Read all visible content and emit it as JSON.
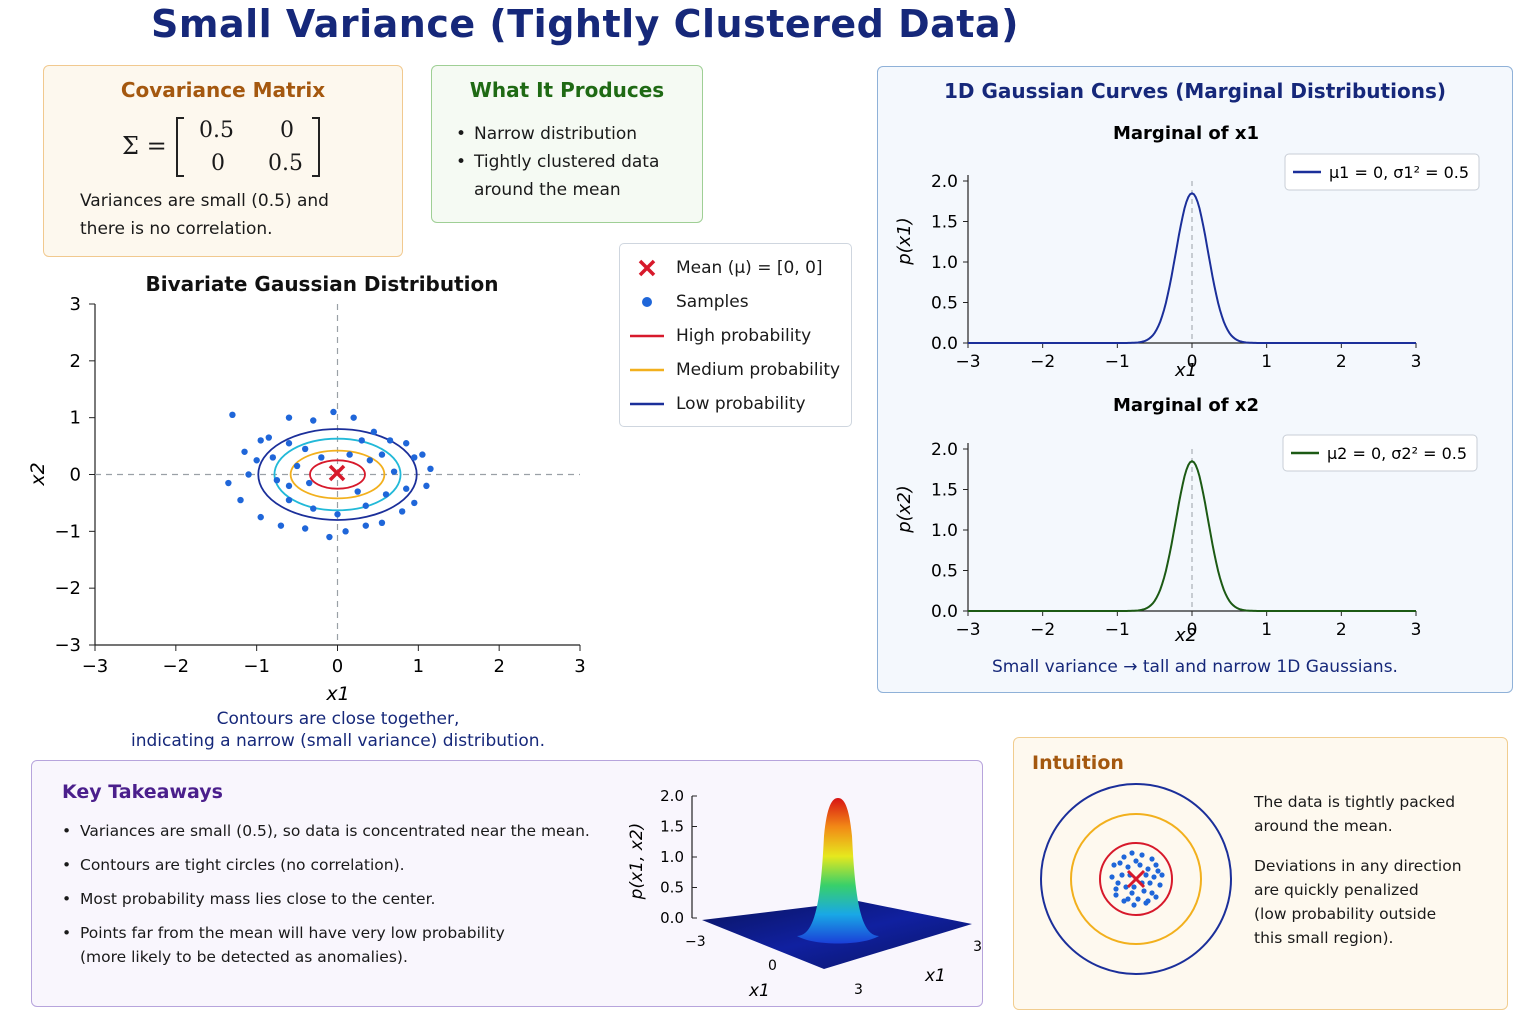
{
  "title": "Small Variance (Tightly Clustered Data)",
  "covariance": {
    "heading": "Covariance Matrix",
    "sigma_symbol": "Σ =",
    "matrix": [
      [
        "0.5",
        "0"
      ],
      [
        "0",
        "0.5"
      ]
    ],
    "note_line1": "Variances are small (0.5) and",
    "note_line2": "there is no correlation."
  },
  "produces": {
    "heading": "What It Produces",
    "bullet1": "Narrow distribution",
    "bullet2_line1": "Tightly clustered data",
    "bullet2_line2": "around the mean"
  },
  "legend": {
    "mean": "Mean (μ) = [0, 0]",
    "samples": "Samples",
    "high": "High probability",
    "medium": "Medium probability",
    "low": "Low probability"
  },
  "bivariate": {
    "title": "Bivariate Gaussian Distribution",
    "xlabel": "x1",
    "ylabel": "x2",
    "ticks": [
      "−3",
      "−2",
      "−1",
      "0",
      "1",
      "2",
      "3"
    ],
    "caption_line1": "Contours are close together,",
    "caption_line2": "indicating a narrow (small variance) distribution."
  },
  "marginals": {
    "heading": "1D Gaussian Curves (Marginal Distributions)",
    "top_title": "Marginal of x1",
    "top_ylabel": "p(x1)",
    "top_xlabel": "x1",
    "top_legend": "μ1 = 0,  σ1² = 0.5",
    "bottom_title": "Marginal of x2",
    "bottom_ylabel": "p(x2)",
    "bottom_xlabel": "x2",
    "bottom_legend": "μ2 = 0,  σ2² = 0.5",
    "xticks": [
      "−3",
      "−2",
      "−1",
      "0",
      "1",
      "2",
      "3"
    ],
    "yticks": [
      "0.0",
      "0.5",
      "1.0",
      "1.5",
      "2.0"
    ],
    "caption": "Small variance → tall and narrow 1D Gaussians."
  },
  "takeaways": {
    "heading": "Key Takeaways",
    "b1": "Variances are small (0.5), so data is concentrated near the mean.",
    "b2": "Contours are tight circles (no correlation).",
    "b3": "Most probability mass lies close to the center.",
    "b4_line1": "Points far from the mean will have very low probability",
    "b4_line2": "(more likely to be detected as anomalies)."
  },
  "surface": {
    "zlabel": "p(x1, x2)",
    "zticks": [
      "2.0",
      "1.5",
      "1.0",
      "0.5",
      "0.0"
    ],
    "xlabel_front": "x1",
    "xlabel_right": "x1",
    "tick_left": "−3",
    "tick_mid": "0",
    "tick_front": "3",
    "tick_right": "3"
  },
  "intuition": {
    "heading": "Intuition",
    "p1_line1": "The data is tightly packed",
    "p1_line2": "around the mean.",
    "p2_line1": "Deviations in any direction",
    "p2_line2": "are quickly penalized",
    "p2_line3": "(low probability outside",
    "p2_line4": "this small region)."
  },
  "colors": {
    "title": "#16287a",
    "high": "#d7192b",
    "medium": "#f2b01d",
    "low": "#1b2f9a",
    "cyan": "#22b9d8",
    "sample": "#1f66d9",
    "marg1": "#1b2f9a",
    "marg2": "#1c5a14"
  },
  "chart_data": [
    {
      "type": "scatter",
      "title": "Bivariate Gaussian Distribution",
      "xlabel": "x1",
      "ylabel": "x2",
      "xlim": [
        -3,
        3
      ],
      "ylim": [
        -3,
        3
      ],
      "mean": [
        0,
        0
      ],
      "covariance": [
        [
          0.5,
          0
        ],
        [
          0,
          0.5
        ]
      ],
      "contours": [
        "High probability",
        "Medium probability",
        "Low probability"
      ],
      "points": [
        [
          -1.3,
          1.05
        ],
        [
          -1.15,
          0.4
        ],
        [
          -1.1,
          0.0
        ],
        [
          -1.35,
          -0.15
        ],
        [
          -1.2,
          -0.45
        ],
        [
          -0.95,
          -0.75
        ],
        [
          -0.7,
          -0.9
        ],
        [
          -0.4,
          -0.95
        ],
        [
          -0.1,
          -1.1
        ],
        [
          0.1,
          -1.0
        ],
        [
          0.35,
          -0.9
        ],
        [
          0.55,
          -0.85
        ],
        [
          0.8,
          -0.65
        ],
        [
          0.95,
          -0.5
        ],
        [
          1.1,
          -0.2
        ],
        [
          1.15,
          0.1
        ],
        [
          1.05,
          0.35
        ],
        [
          0.85,
          0.55
        ],
        [
          0.65,
          0.6
        ],
        [
          0.45,
          0.75
        ],
        [
          0.2,
          1.0
        ],
        [
          -0.05,
          1.1
        ],
        [
          -0.3,
          0.95
        ],
        [
          -0.6,
          1.0
        ],
        [
          -0.85,
          0.65
        ],
        [
          -0.8,
          0.3
        ],
        [
          -0.95,
          0.6
        ],
        [
          -0.6,
          0.55
        ],
        [
          -0.4,
          0.45
        ],
        [
          0.3,
          0.6
        ],
        [
          0.55,
          0.35
        ],
        [
          0.7,
          0.05
        ],
        [
          0.6,
          -0.35
        ],
        [
          0.35,
          -0.55
        ],
        [
          0.0,
          -0.7
        ],
        [
          -0.3,
          -0.6
        ],
        [
          -0.6,
          -0.45
        ],
        [
          -0.75,
          -0.1
        ],
        [
          -0.5,
          0.15
        ],
        [
          -0.35,
          -0.15
        ],
        [
          0.4,
          0.25
        ],
        [
          0.25,
          -0.3
        ],
        [
          -0.2,
          0.3
        ],
        [
          0.15,
          0.35
        ],
        [
          -0.6,
          -0.2
        ],
        [
          0.85,
          -0.25
        ],
        [
          -1.0,
          0.25
        ],
        [
          0.95,
          0.3
        ]
      ]
    },
    {
      "type": "line",
      "title": "Marginal of x1",
      "xlabel": "x1",
      "ylabel": "p(x1)",
      "xlim": [
        -3,
        3
      ],
      "ylim": [
        0,
        2
      ],
      "series": [
        {
          "name": "μ1 = 0, σ1² = 0.5",
          "mu": 0,
          "peak": 1.85,
          "shape": "gaussian"
        }
      ]
    },
    {
      "type": "line",
      "title": "Marginal of x2",
      "xlabel": "x2",
      "ylabel": "p(x2)",
      "xlim": [
        -3,
        3
      ],
      "ylim": [
        0,
        2
      ],
      "series": [
        {
          "name": "μ2 = 0, σ2² = 0.5",
          "mu": 0,
          "peak": 1.85,
          "shape": "gaussian"
        }
      ]
    },
    {
      "type": "area",
      "title": "",
      "zlabel": "p(x1, x2)",
      "zlim": [
        0,
        2
      ],
      "peak": 1.9,
      "surface": "gaussian"
    }
  ]
}
